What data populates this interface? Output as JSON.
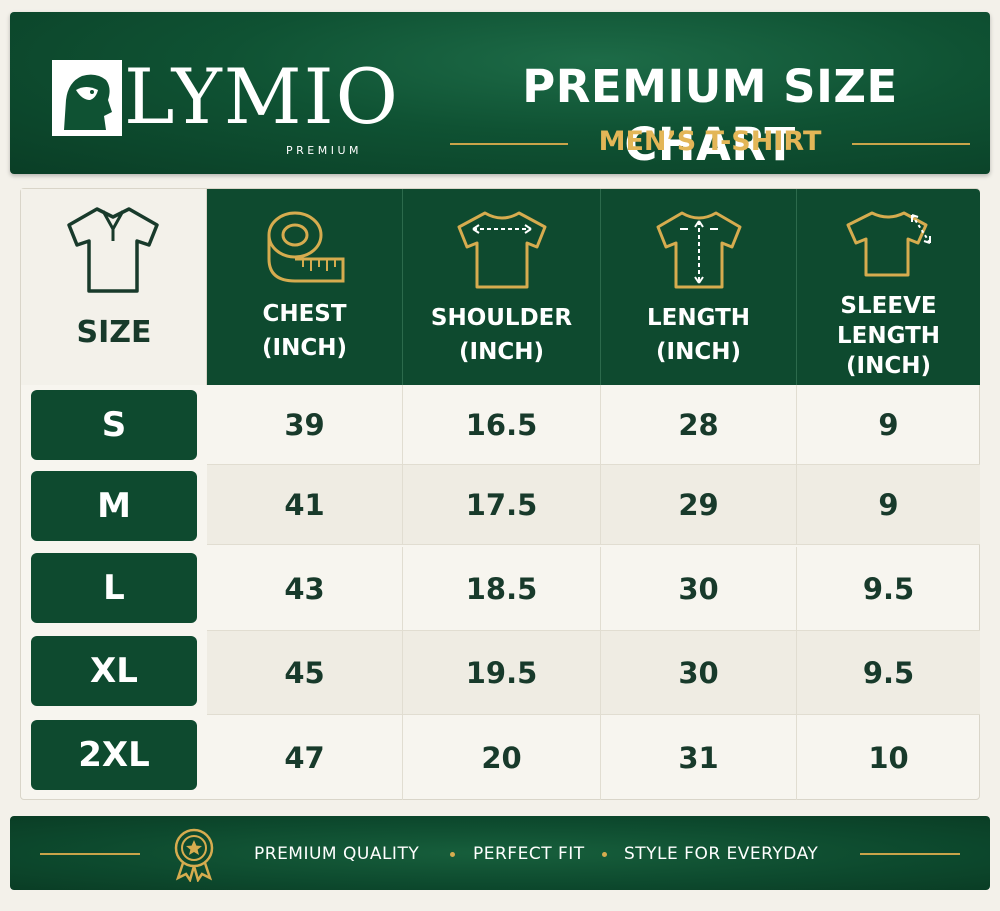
{
  "brand": {
    "name": "LYMIO",
    "sub": "PREMIUM"
  },
  "header": {
    "title": "PREMIUM SIZE CHART",
    "subtitle": "MEN’S T-SHIRT"
  },
  "table": {
    "size_header": "SIZE",
    "columns": [
      {
        "line1": "CHEST",
        "line2": "(INCH)",
        "line3": "",
        "icon": "measuring-tape-icon"
      },
      {
        "line1": "SHOULDER",
        "line2": "(INCH)",
        "line3": "",
        "icon": "tshirt-shoulder-icon"
      },
      {
        "line1": "LENGTH",
        "line2": "(INCH)",
        "line3": "",
        "icon": "tshirt-length-icon"
      },
      {
        "line1": "SLEEVE",
        "line2": "LENGTH",
        "line3": "(INCH)",
        "icon": "tshirt-sleeve-icon"
      }
    ],
    "rows": [
      {
        "size": "S",
        "values": [
          "39",
          "16.5",
          "28",
          "9"
        ]
      },
      {
        "size": "M",
        "values": [
          "41",
          "17.5",
          "29",
          "9"
        ]
      },
      {
        "size": "L",
        "values": [
          "43",
          "18.5",
          "30",
          "9.5"
        ]
      },
      {
        "size": "XL",
        "values": [
          "45",
          "19.5",
          "30",
          "9.5"
        ]
      },
      {
        "size": "2XL",
        "values": [
          "47",
          "20",
          "31",
          "10"
        ]
      }
    ]
  },
  "footer": {
    "items": [
      "PREMIUM QUALITY",
      "PERFECT FIT",
      "STYLE FOR EVERYDAY"
    ],
    "icon": "award-badge-icon"
  },
  "colors": {
    "green": "#0e4a2f",
    "gold": "#c9a44a",
    "cream": "#f3f1ea"
  }
}
